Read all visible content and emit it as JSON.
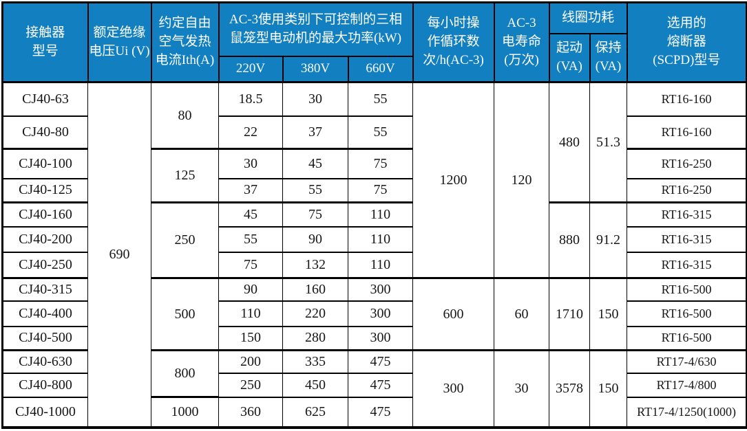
{
  "accent_color": "#117fc0",
  "grid_color": "#000000",
  "table": {
    "header_rows": [
      [
        {
          "t": "接触器\n型号",
          "rs": 3,
          "name": "col-header-model"
        },
        {
          "t": "额定绝缘\n电压Ui (V)",
          "rs": 3,
          "name": "col-header-insulation-voltage"
        },
        {
          "t": "约定自由\n空气发热\n电流Ith(A)",
          "rs": 3,
          "name": "col-header-thermal-current"
        },
        {
          "t": "AC-3使用类别下可控制的三相\n鼠笼型电动机的最大功率(kW)",
          "cs": 3,
          "rs": 2,
          "name": "col-header-max-power-group"
        },
        {
          "t": "每小时操\n作循环数\n次/h(AC-3)",
          "rs": 3,
          "name": "col-header-cycles-per-hour"
        },
        {
          "t": "AC-3\n电寿命\n(万次)",
          "rs": 3,
          "name": "col-header-electrical-life"
        },
        {
          "t": "线圈功耗",
          "cs": 2,
          "name": "col-header-coil-consumption-group"
        },
        {
          "t": "选用的\n熔断器\n(SCPD)型号",
          "rs": 3,
          "name": "col-header-fuse-model"
        }
      ],
      [
        {
          "t": "起动\n(VA)",
          "rs": 2,
          "name": "col-header-coil-start"
        },
        {
          "t": "保持\n(VA)",
          "rs": 2,
          "name": "col-header-coil-hold"
        }
      ],
      [
        {
          "t": "220V",
          "name": "col-header-220v"
        },
        {
          "t": "380V",
          "name": "col-header-380v"
        },
        {
          "t": "660V",
          "name": "col-header-660v"
        }
      ]
    ],
    "group_rows": [
      2,
      4,
      7,
      10
    ],
    "body_rows": [
      [
        "CJ40-63",
        {
          "t": "690",
          "rs": 13
        },
        {
          "t": "80",
          "rs": 2
        },
        "18.5",
        "30",
        "55",
        {
          "t": "1200",
          "rs": 7
        },
        {
          "t": "120",
          "rs": 7
        },
        {
          "t": "480",
          "rs": 4
        },
        {
          "t": "51.3",
          "rs": 4
        },
        "RT16-160"
      ],
      [
        "CJ40-80",
        "22",
        "37",
        "55",
        "RT16-160"
      ],
      [
        "CJ40-100",
        {
          "t": "125",
          "rs": 2
        },
        "30",
        "45",
        "75",
        "RT16-250"
      ],
      [
        "CJ40-125",
        "37",
        "55",
        "75",
        "RT16-250"
      ],
      [
        "CJ40-160",
        {
          "t": "250",
          "rs": 3
        },
        "45",
        "75",
        "110",
        {
          "t": "880",
          "rs": 3
        },
        {
          "t": "91.2",
          "rs": 3
        },
        "RT16-315"
      ],
      [
        "CJ40-200",
        "55",
        "90",
        "110",
        "RT16-315"
      ],
      [
        "CJ40-250",
        "75",
        "132",
        "110",
        "RT16-315"
      ],
      [
        "CJ40-315",
        {
          "t": "500",
          "rs": 3
        },
        "90",
        "160",
        "300",
        {
          "t": "600",
          "rs": 3
        },
        {
          "t": "60",
          "rs": 3
        },
        {
          "t": "1710",
          "rs": 3
        },
        {
          "t": "150",
          "rs": 3
        },
        "RT16-500"
      ],
      [
        "CJ40-400",
        "110",
        "220",
        "300",
        "RT16-500"
      ],
      [
        "CJ40-500",
        "150",
        "280",
        "300",
        "RT16-500"
      ],
      [
        "CJ40-630",
        {
          "t": "800",
          "rs": 2
        },
        "200",
        "335",
        "475",
        {
          "t": "300",
          "rs": 3
        },
        {
          "t": "30",
          "rs": 3
        },
        {
          "t": "3578",
          "rs": 3
        },
        {
          "t": "150",
          "rs": 3
        },
        "RT17-4/630"
      ],
      [
        "CJ40-800",
        "250",
        "450",
        "475",
        "RT17-4/800"
      ],
      [
        "CJ40-1000",
        {
          "t": "1000",
          "gt": true
        },
        "360",
        "625",
        "475",
        "RT17-4/1250(1000)"
      ]
    ]
  }
}
